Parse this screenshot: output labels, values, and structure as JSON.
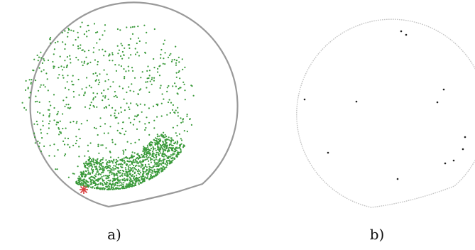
{
  "figure": {
    "panels": [
      {
        "id": "a",
        "label": "a)",
        "point_color": "#3a9a3a",
        "marker_color": "#d94040"
      },
      {
        "id": "b",
        "label": "b)",
        "point_color": "#222222"
      }
    ]
  }
}
